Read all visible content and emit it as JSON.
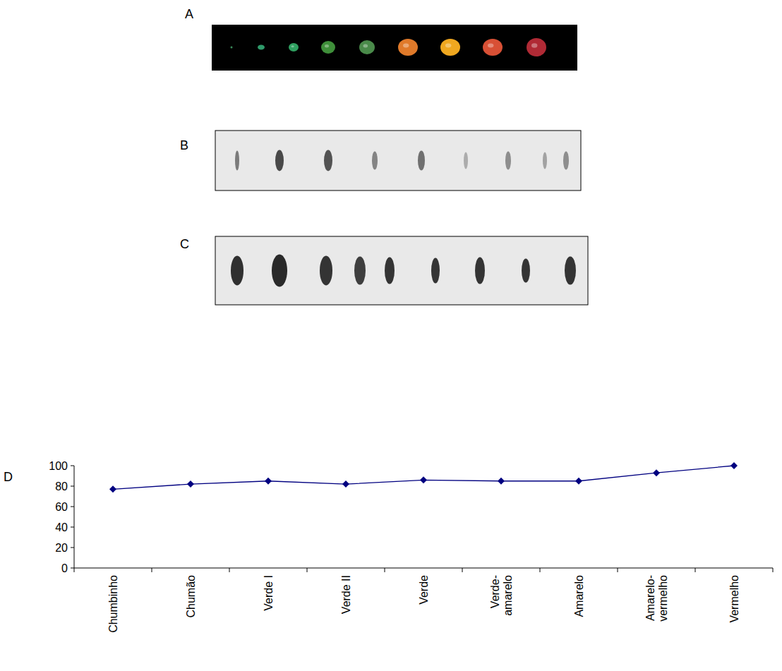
{
  "panels": [
    {
      "label": "A"
    },
    {
      "label": "B"
    },
    {
      "label": "C"
    },
    {
      "label": "D"
    }
  ],
  "chart_data": {
    "type": "line",
    "categories": [
      "Chumbinho",
      "Chumão",
      "Verde I",
      "Verde II",
      "Verde",
      "Verde-amarelo",
      "Amarelo",
      "Amarelo-vermelho",
      "Vermelho"
    ],
    "values": [
      77,
      82,
      85,
      82,
      86,
      85,
      85,
      93,
      100
    ],
    "color": "#000080",
    "marker": "diamond",
    "ylim": [
      0,
      100
    ],
    "yticks": [
      0,
      20,
      40,
      60,
      80,
      100
    ],
    "grid": false
  }
}
